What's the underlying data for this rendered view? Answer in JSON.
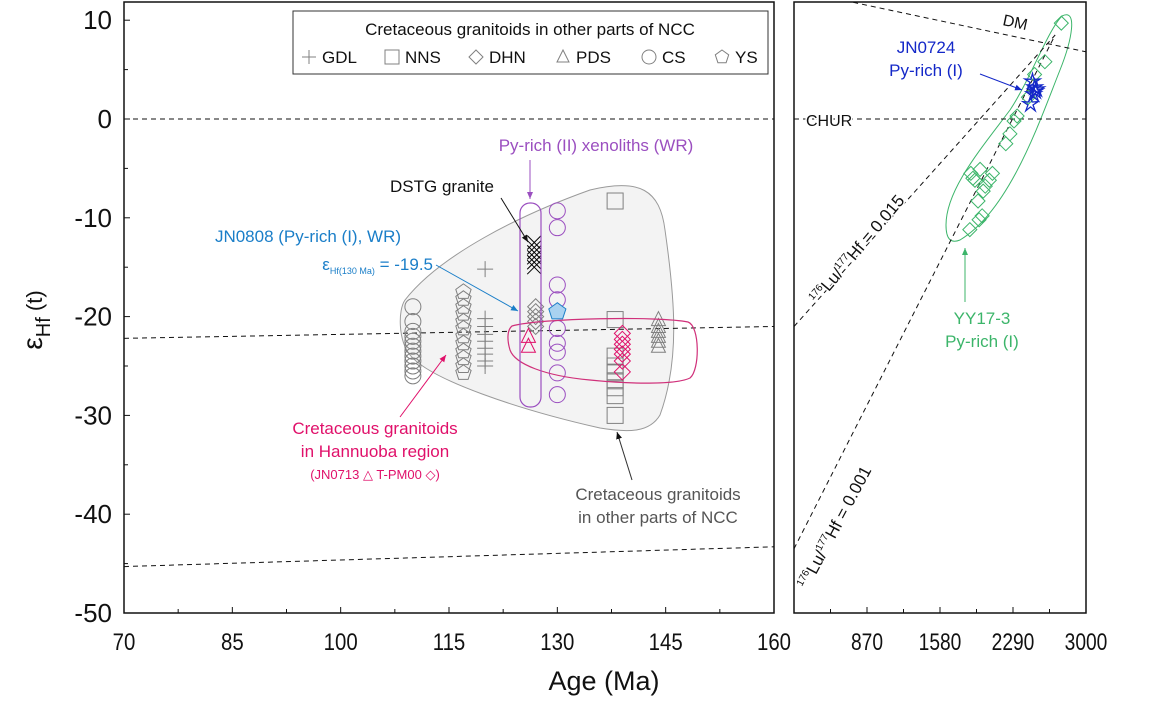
{
  "chart_data": [
    {
      "type": "scatter",
      "panel": "left",
      "xlabel": "Age (Ma)",
      "ylabel": "εHf (t)",
      "xlim": [
        70,
        160
      ],
      "ylim": [
        -50,
        12
      ],
      "x_ticks": [
        "70",
        "85",
        "100",
        "115",
        "130",
        "145",
        "160"
      ],
      "y_ticks": [
        "10",
        "0",
        "-10",
        "-20",
        "-30",
        "-40",
        "-50"
      ],
      "legend": {
        "title": "Cretaceous granitoids in other parts of NCC",
        "placement": "top-right",
        "entries": [
          {
            "symbol": "plus",
            "label": "GDL"
          },
          {
            "symbol": "square",
            "label": "NNS"
          },
          {
            "symbol": "diamond",
            "label": "DHN"
          },
          {
            "symbol": "triangle",
            "label": "PDS"
          },
          {
            "symbol": "circle",
            "label": "CS"
          },
          {
            "symbol": "pentagon",
            "label": "YS"
          }
        ]
      },
      "reference_lines": [
        {
          "name": "CHUR",
          "points": [
            [
              70,
              0
            ],
            [
              160,
              0
            ]
          ]
        },
        {
          "name": "evolution-upper",
          "points": [
            [
              70,
              -22.2
            ],
            [
              160,
              -21
            ]
          ]
        },
        {
          "name": "evolution-lower",
          "points": [
            [
              70,
              -45.3
            ],
            [
              160,
              -43.3
            ]
          ]
        }
      ],
      "series": [
        {
          "name": "CS",
          "color": "#808080",
          "symbol": "circle",
          "x": 110,
          "y": [
            -19,
            -20.5,
            -21.5,
            -22,
            -22.5,
            -23,
            -23.5,
            -24,
            -24.5,
            -25,
            -25.5,
            -26
          ]
        },
        {
          "name": "YS",
          "color": "#808080",
          "symbol": "pentagon",
          "x": 117,
          "y": [
            -17.5,
            -18.2,
            -19,
            -19.7,
            -20.5,
            -21.2,
            -22,
            -22.7,
            -23.5,
            -24.2,
            -25,
            -25.7
          ]
        },
        {
          "name": "GDL",
          "color": "#808080",
          "symbol": "plus",
          "x": 120,
          "y": [
            -15.2,
            -20.2,
            -21,
            -21.8,
            -22.5,
            -23.2,
            -23.8,
            -24.5,
            -25
          ]
        },
        {
          "name": "DHN",
          "color": "#808080",
          "symbol": "diamond",
          "x": 127,
          "y": [
            -19,
            -19.5,
            -20,
            -20.5,
            -21
          ]
        },
        {
          "name": "NNS",
          "color": "#808080",
          "symbol": "square",
          "x": 138,
          "y": [
            -8.3,
            -20.3,
            -24,
            -25,
            -25.7,
            -26.5,
            -27.2,
            -28,
            -30
          ]
        },
        {
          "name": "PDS",
          "color": "#808080",
          "symbol": "triangle",
          "x": 144,
          "y": [
            -20.3,
            -21,
            -21.5,
            -22,
            -22.5,
            -23
          ]
        },
        {
          "name": "DSTG granite",
          "color": "#000000",
          "symbol": "x",
          "x": 126.8,
          "y": [
            -12.5,
            -13,
            -13.5,
            -14,
            -14.5,
            -15
          ]
        },
        {
          "name": "Py-rich (II) xenoliths (WR)",
          "color": "#9b4fc0",
          "symbol": "circle",
          "x": 130,
          "y": [
            -9.3,
            -11,
            -16.8,
            -18.3,
            -21.2,
            -22.7,
            -23.6,
            -25.7,
            -27.9
          ]
        },
        {
          "name": "JN0713",
          "color": "#e0106a",
          "symbol": "triangle",
          "x": 126,
          "y": [
            -22,
            -23
          ]
        },
        {
          "name": "T-PM00",
          "color": "#e0106a",
          "symbol": "diamond",
          "x": 139,
          "y": [
            -21.7,
            -22.3,
            -22.8,
            -23.3,
            -23.8,
            -24.5,
            -25.6
          ]
        },
        {
          "name": "JN0808 (Py-rich (I), WR)",
          "color": "#1a7ec8",
          "symbol": "pentagon",
          "x": 130,
          "y": [
            -19.5
          ]
        }
      ],
      "annotations": [
        {
          "text": "Py-rich (II) xenoliths (WR)",
          "color": "#9b4fc0"
        },
        {
          "text": "DSTG granite",
          "color": "#000000"
        },
        {
          "text": "JN0808 (Py-rich (I), WR)",
          "color": "#1a7ec8"
        },
        {
          "text_prefix": "ε",
          "text_sub": "Hf(130 Ma)",
          "text_value": " = -19.5",
          "color": "#1a7ec8"
        },
        {
          "text": "Cretaceous granitoids",
          "color": "#e0106a"
        },
        {
          "text": "in Hannuoba region",
          "color": "#e0106a"
        },
        {
          "text": "(JN0713 △   T-PM00 ◇)",
          "color": "#e0106a"
        },
        {
          "text": "Cretaceous granitoids",
          "color": "#555555"
        },
        {
          "text": "in other parts of NCC",
          "color": "#555555"
        }
      ]
    },
    {
      "type": "scatter",
      "panel": "right",
      "xlim": [
        160,
        3000
      ],
      "ylim": [
        -50,
        12
      ],
      "x_ticks": [
        "870",
        "1580",
        "2290",
        "3000"
      ],
      "reference_lines": [
        {
          "name": "CHUR",
          "label": "CHUR",
          "points": [
            [
              160,
              0
            ],
            [
              3000,
              0
            ]
          ]
        },
        {
          "name": "DM",
          "label": "DM",
          "points": [
            [
              650,
              12
            ],
            [
              3000,
              6.8
            ]
          ]
        },
        {
          "name": "176Lu/177Hf = 0.015",
          "points": [
            [
              160,
              -21
            ],
            [
              2700,
              8.5
            ]
          ]
        },
        {
          "name": "176Lu/177Hf = 0.001",
          "points": [
            [
              160,
              -43.5
            ],
            [
              2700,
              8.5
            ]
          ]
        }
      ],
      "line_labels": [
        {
          "sup1": "176",
          "main1": "Lu/",
          "sup2": "177",
          "main2": "Hf = 0.015"
        },
        {
          "sup1": "176",
          "main1": "Lu/",
          "sup2": "177",
          "main2": "Hf = 0.001"
        }
      ],
      "series": [
        {
          "name": "YY17-3 Py-rich (I)",
          "color": "#3cb56a",
          "symbol": "diamond",
          "points": [
            [
              2760,
              9.7
            ],
            [
              2600,
              5.8
            ],
            [
              2500,
              4.5
            ],
            [
              2440,
              2.2
            ],
            [
              2330,
              0.3
            ],
            [
              2300,
              -0.2
            ],
            [
              2260,
              -1.5
            ],
            [
              2220,
              -2.5
            ],
            [
              1880,
              -5.5
            ],
            [
              1900,
              -6
            ],
            [
              1920,
              -6.2
            ],
            [
              1970,
              -5.1
            ],
            [
              2090,
              -5.5
            ],
            [
              2060,
              -6.2
            ],
            [
              2020,
              -6.8
            ],
            [
              2000,
              -7.3
            ],
            [
              1950,
              -8.3
            ],
            [
              1990,
              -9.8
            ],
            [
              1960,
              -10.2
            ],
            [
              1870,
              -11.2
            ]
          ]
        },
        {
          "name": "JN0724 Py-rich (I)",
          "color": "#1428c8",
          "symbol": "star",
          "points": [
            [
              2480,
              3.8
            ],
            [
              2500,
              3.2
            ],
            [
              2520,
              3.0
            ],
            [
              2490,
              2.5
            ],
            [
              2460,
              1.5
            ],
            [
              2510,
              2.8
            ]
          ]
        }
      ],
      "annotations": [
        {
          "text": "JN0724",
          "color": "#1428c8"
        },
        {
          "text": "Py-rich (I)",
          "color": "#1428c8"
        },
        {
          "text": "YY17-3",
          "color": "#3cb56a"
        },
        {
          "text": "Py-rich (I)",
          "color": "#3cb56a"
        }
      ]
    }
  ]
}
